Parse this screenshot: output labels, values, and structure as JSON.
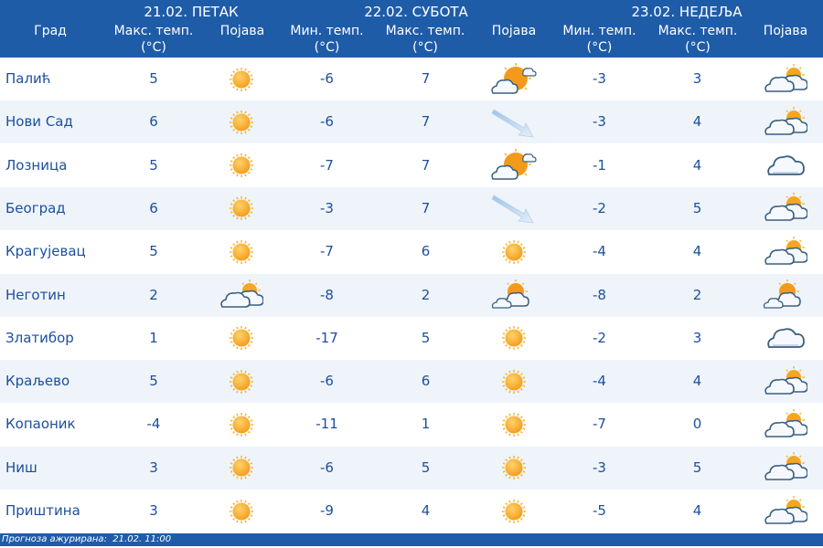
{
  "header": {
    "city_col": "Град",
    "days": [
      {
        "title": "21.02. ПЕТАК"
      },
      {
        "title": "22.02. СУБОТА"
      },
      {
        "title": "23.02. НЕДЕЉА"
      }
    ],
    "max_temp": "Макс. темп.",
    "min_temp": "Мин. темп.",
    "unit": "(°C)",
    "phenomenon": "Појава"
  },
  "rows": [
    {
      "city": "Палић",
      "d1_max": "5",
      "d1_icon": "sun",
      "d2_min": "-6",
      "d2_max": "7",
      "d2_icon": "sun-cloud-big",
      "d3_min": "-3",
      "d3_max": "3",
      "d3_icon": "clouds-sun"
    },
    {
      "city": "Нови Сад",
      "d1_max": "6",
      "d1_icon": "sun",
      "d2_min": "-6",
      "d2_max": "7",
      "d2_icon": "wind-arrow",
      "d3_min": "-3",
      "d3_max": "4",
      "d3_icon": "clouds-sun"
    },
    {
      "city": "Лозница",
      "d1_max": "5",
      "d1_icon": "sun",
      "d2_min": "-7",
      "d2_max": "7",
      "d2_icon": "sun-cloud-big",
      "d3_min": "-1",
      "d3_max": "4",
      "d3_icon": "cloud"
    },
    {
      "city": "Београд",
      "d1_max": "6",
      "d1_icon": "sun",
      "d2_min": "-3",
      "d2_max": "7",
      "d2_icon": "wind-arrow",
      "d3_min": "-2",
      "d3_max": "5",
      "d3_icon": "clouds-sun"
    },
    {
      "city": "Крагујевац",
      "d1_max": "5",
      "d1_icon": "sun",
      "d2_min": "-7",
      "d2_max": "6",
      "d2_icon": "sun",
      "d3_min": "-4",
      "d3_max": "4",
      "d3_icon": "clouds-sun"
    },
    {
      "city": "Неготин",
      "d1_max": "2",
      "d1_icon": "clouds-sun",
      "d2_min": "-8",
      "d2_max": "2",
      "d2_icon": "sun-behind-cloud",
      "d3_min": "-8",
      "d3_max": "2",
      "d3_icon": "sun-behind-cloud"
    },
    {
      "city": "Златибор",
      "d1_max": "1",
      "d1_icon": "sun",
      "d2_min": "-17",
      "d2_max": "5",
      "d2_icon": "sun",
      "d3_min": "-2",
      "d3_max": "3",
      "d3_icon": "cloud"
    },
    {
      "city": "Краљево",
      "d1_max": "5",
      "d1_icon": "sun",
      "d2_min": "-6",
      "d2_max": "6",
      "d2_icon": "sun",
      "d3_min": "-4",
      "d3_max": "4",
      "d3_icon": "clouds-sun"
    },
    {
      "city": "Копаоник",
      "d1_max": "-4",
      "d1_icon": "sun",
      "d2_min": "-11",
      "d2_max": "1",
      "d2_icon": "sun",
      "d3_min": "-7",
      "d3_max": "0",
      "d3_icon": "clouds-sun"
    },
    {
      "city": "Ниш",
      "d1_max": "3",
      "d1_icon": "sun",
      "d2_min": "-6",
      "d2_max": "5",
      "d2_icon": "sun",
      "d3_min": "-3",
      "d3_max": "5",
      "d3_icon": "clouds-sun"
    },
    {
      "city": "Приштина",
      "d1_max": "3",
      "d1_icon": "sun",
      "d2_min": "-9",
      "d2_max": "4",
      "d2_icon": "sun",
      "d3_min": "-5",
      "d3_max": "4",
      "d3_icon": "clouds-sun"
    }
  ],
  "footer": {
    "text": "Прогноза ажурирана:  21.02. 11:00"
  },
  "colors": {
    "header_bg": "#1f5ca8",
    "text": "#1c4f9c",
    "row_alt": "#eef4fa",
    "sun": "#f7a823",
    "cloud_stroke": "#3b5f80"
  }
}
